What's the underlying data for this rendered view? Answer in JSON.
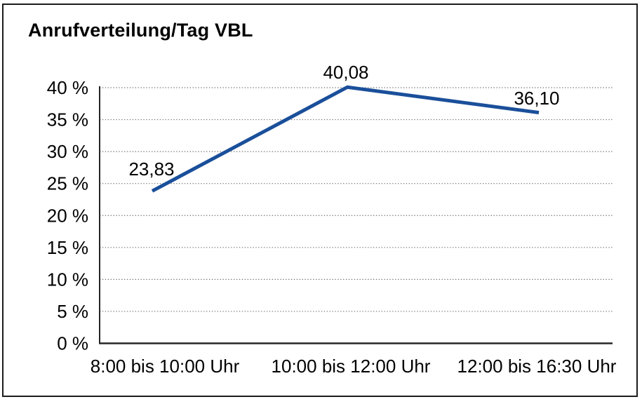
{
  "window": {
    "background_color": "#ffffff",
    "border_color": "#1c1c1c"
  },
  "style": {
    "line_color": "#1a4f9a",
    "axis_color": "#262626",
    "grid_color": "#6b6b6b",
    "text_color": "#000000",
    "title_color": "#000000"
  },
  "chart_data": {
    "type": "line",
    "title": "Anrufverteilung/Tag VBL",
    "categories": [
      "8:00 bis 10:00 Uhr",
      "10:00 bis 12:00 Uhr",
      "12:00 bis 16:30 Uhr"
    ],
    "values": [
      23.83,
      40.08,
      36.1
    ],
    "value_labels": [
      "23,83",
      "40,08",
      "36,10"
    ],
    "y_tick_values": [
      0,
      5,
      10,
      15,
      20,
      25,
      30,
      35,
      40
    ],
    "y_tick_labels": [
      "0 %",
      "5 %",
      "10 %",
      "15 %",
      "20 %",
      "25 %",
      "30 %",
      "35 %",
      "40 %"
    ],
    "ylim": [
      0,
      40
    ],
    "xlabel": "",
    "ylabel": "",
    "grid": true,
    "grid_style": "dotted-horizontal",
    "legend": false
  }
}
